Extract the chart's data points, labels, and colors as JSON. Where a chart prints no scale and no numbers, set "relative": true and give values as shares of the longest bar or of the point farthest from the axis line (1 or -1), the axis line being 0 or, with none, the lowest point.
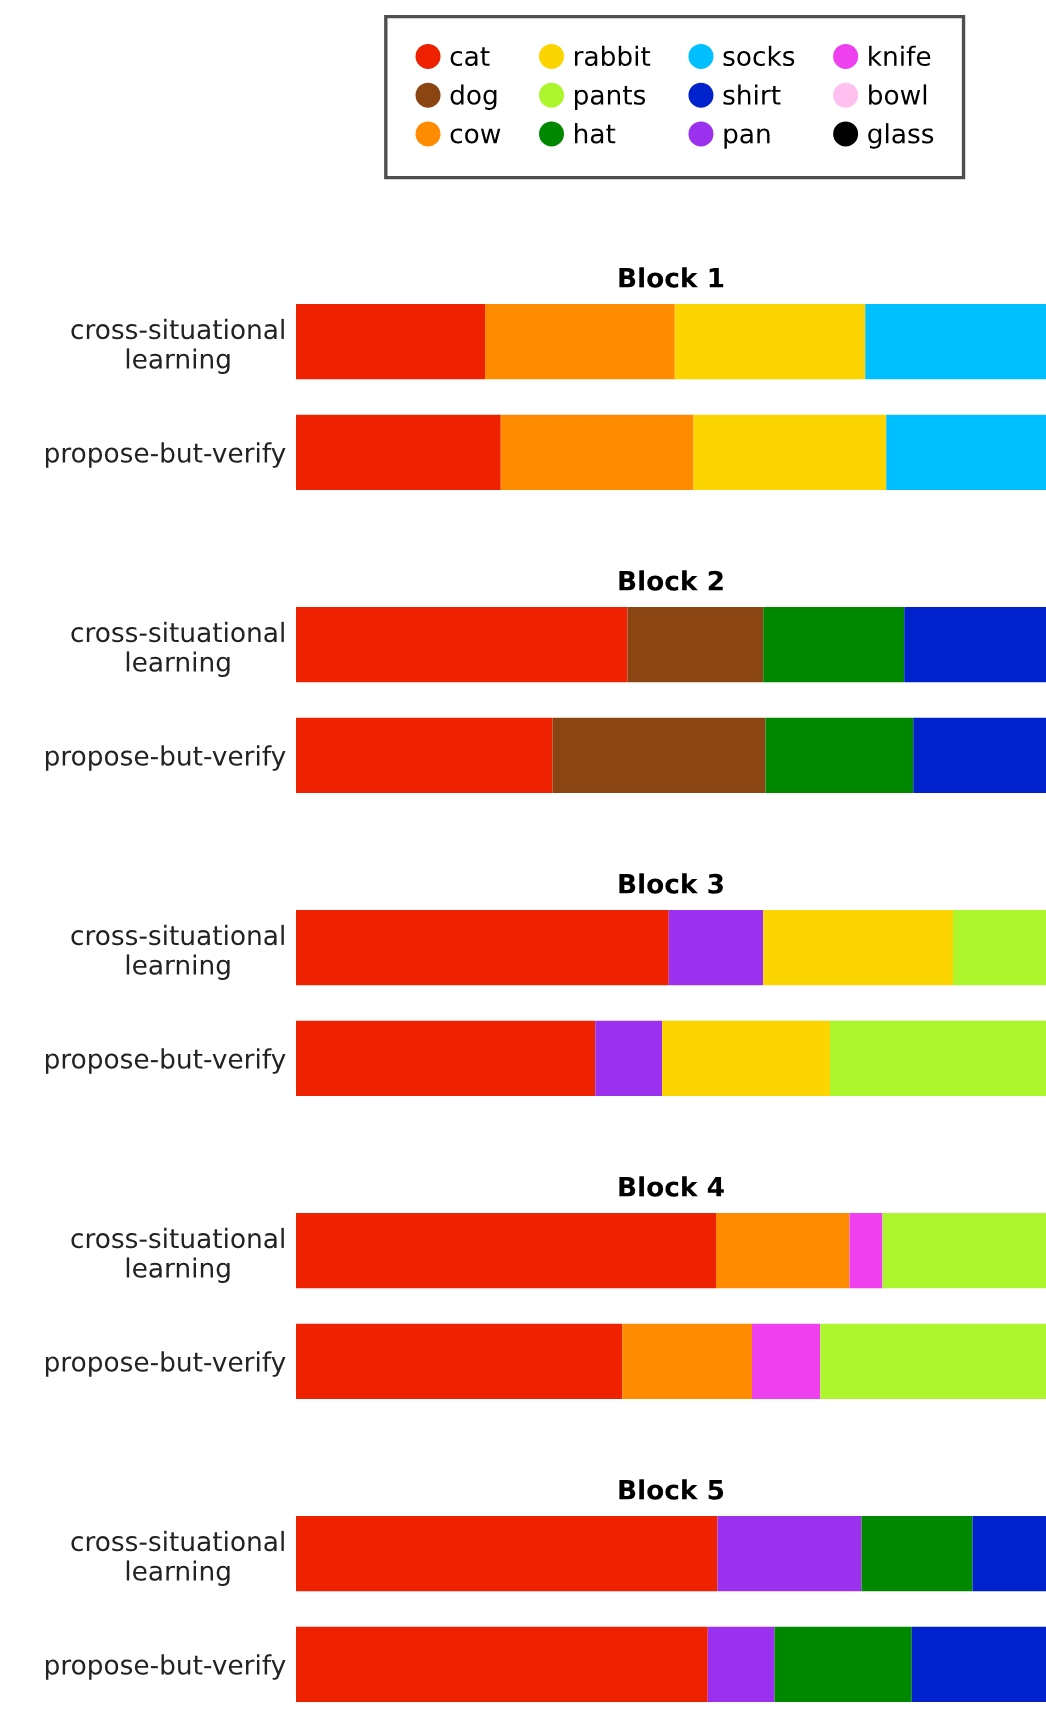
{
  "chart_data": [
    {
      "type": "bar",
      "orientation": "horizontal",
      "stacked": true,
      "relative": true,
      "title": "Block 1",
      "legend": "top",
      "categories": [
        "cross-situational\nlearning",
        "propose-but-verify"
      ],
      "series": [
        {
          "name": "cat",
          "color": "#ee2200",
          "values": [
            0.252,
            0.273
          ]
        },
        {
          "name": "dog",
          "color": "#8b4513",
          "values": [
            null,
            null
          ]
        },
        {
          "name": "cow",
          "color": "#ff8c00",
          "values": [
            0.253,
            0.257
          ]
        },
        {
          "name": "rabbit",
          "color": "#fcd400",
          "values": [
            0.254,
            0.257
          ]
        },
        {
          "name": "pants",
          "color": "#adf52d",
          "values": [
            null,
            null
          ]
        },
        {
          "name": "hat",
          "color": "#008800",
          "values": [
            null,
            null
          ]
        },
        {
          "name": "socks",
          "color": "#00bfff",
          "values": [
            0.241,
            0.213
          ]
        },
        {
          "name": "shirt",
          "color": "#0022cc",
          "values": [
            null,
            null
          ]
        },
        {
          "name": "pan",
          "color": "#9b30ee",
          "values": [
            null,
            null
          ]
        },
        {
          "name": "knife",
          "color": "#ee40ee",
          "values": [
            null,
            null
          ]
        },
        {
          "name": "bowl",
          "color": "#ffc0f0",
          "values": [
            null,
            null
          ]
        },
        {
          "name": "glass",
          "color": "#000000",
          "values": [
            null,
            null
          ]
        }
      ]
    },
    {
      "type": "bar",
      "orientation": "horizontal",
      "stacked": true,
      "relative": true,
      "title": "Block 2",
      "categories": [
        "cross-situational\nlearning",
        "propose-but-verify"
      ],
      "series": [
        {
          "color": "#ee2200",
          "values": [
            0.442,
            0.342
          ]
        },
        {
          "color": "#8b4513",
          "values": [
            0.181,
            0.284
          ]
        },
        {
          "color": "#008800",
          "values": [
            0.188,
            0.197
          ]
        },
        {
          "color": "#0022cc",
          "values": [
            0.189,
            0.177
          ]
        }
      ]
    },
    {
      "type": "bar",
      "orientation": "horizontal",
      "stacked": true,
      "relative": true,
      "title": "Block 3",
      "categories": [
        "cross-situational\nlearning",
        "propose-but-verify"
      ],
      "series": [
        {
          "color": "#ee2200",
          "values": [
            0.497,
            0.399
          ]
        },
        {
          "color": "#9b30ee",
          "values": [
            0.126,
            0.089
          ]
        },
        {
          "color": "#fcd400",
          "values": [
            0.253,
            0.224
          ]
        },
        {
          "color": "#adf52d",
          "values": [
            0.124,
            0.288
          ]
        }
      ]
    },
    {
      "type": "bar",
      "orientation": "horizontal",
      "stacked": true,
      "relative": true,
      "title": "Block 4",
      "categories": [
        "cross-situational\nlearning",
        "propose-but-verify"
      ],
      "series": [
        {
          "color": "#ee2200",
          "values": [
            0.56,
            0.435
          ]
        },
        {
          "color": "#ff8c00",
          "values": [
            0.178,
            0.173
          ]
        },
        {
          "color": "#ee40ee",
          "values": [
            0.044,
            0.091
          ]
        },
        {
          "color": "#adf52d",
          "values": [
            0.218,
            0.301
          ]
        }
      ]
    },
    {
      "type": "bar",
      "orientation": "horizontal",
      "stacked": true,
      "relative": true,
      "title": "Block 5",
      "categories": [
        "cross-situational\nlearning",
        "propose-but-verify"
      ],
      "series": [
        {
          "color": "#ee2200",
          "values": [
            0.562,
            0.549
          ]
        },
        {
          "color": "#9b30ee",
          "values": [
            0.192,
            0.089
          ]
        },
        {
          "color": "#008800",
          "values": [
            0.148,
            0.183
          ]
        },
        {
          "color": "#0022cc",
          "values": [
            0.098,
            0.179
          ]
        }
      ]
    }
  ]
}
